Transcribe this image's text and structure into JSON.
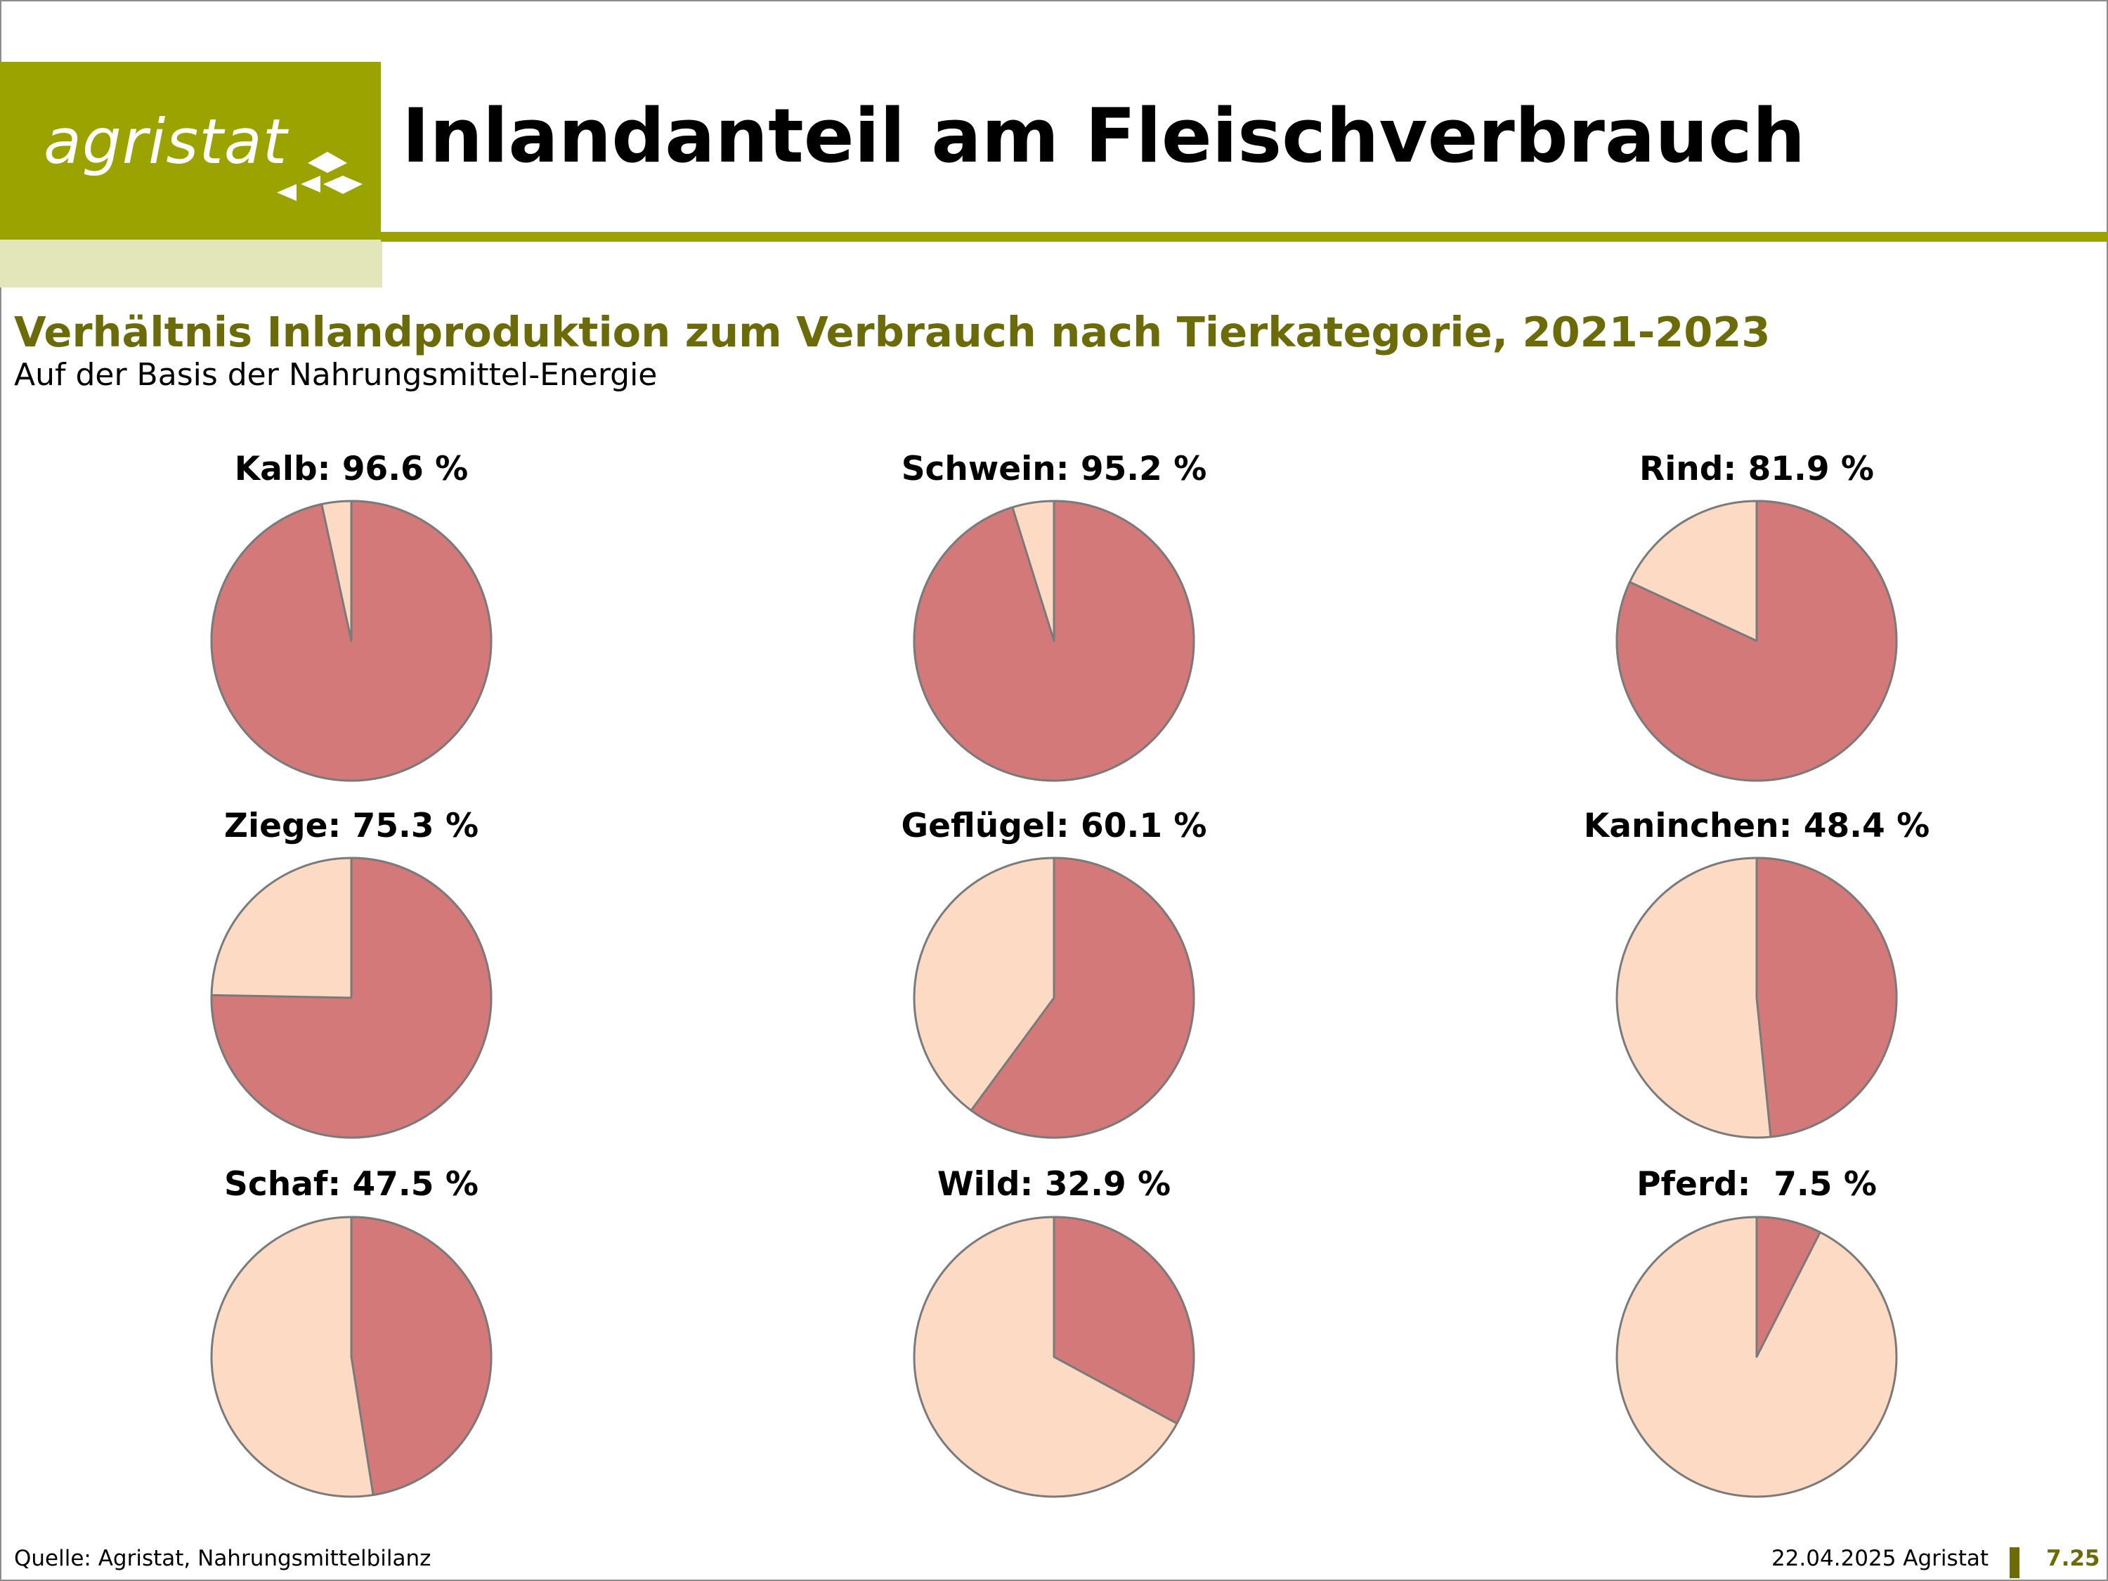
{
  "header": {
    "logo_text": "agristat",
    "title": "Inlandanteil am Fleischverbrauch"
  },
  "subtitle": "Verhältnis Inlandproduktion zum Verbrauch nach Tierkategorie, 2021-2023",
  "subtitle2": "Auf der Basis der Nahrungsmittel-Energie",
  "colors": {
    "brand": "#9aa300",
    "brand_light": "#e3e6b8",
    "subtitle": "#6b6b0a",
    "inland": "#d47979",
    "rest": "#fddac4",
    "outline": "#7a7a7a"
  },
  "chart_data": {
    "type": "pie",
    "charts": [
      {
        "label": "Kalb: 96.6 %",
        "category": "Kalb",
        "value": 96.6
      },
      {
        "label": "Schwein: 95.2 %",
        "category": "Schwein",
        "value": 95.2
      },
      {
        "label": "Rind: 81.9 %",
        "category": "Rind",
        "value": 81.9
      },
      {
        "label": "Ziege: 75.3 %",
        "category": "Ziege",
        "value": 75.3
      },
      {
        "label": "Geflügel: 60.1 %",
        "category": "Geflügel",
        "value": 60.1
      },
      {
        "label": "Kaninchen: 48.4 %",
        "category": "Kaninchen",
        "value": 48.4
      },
      {
        "label": "Schaf: 47.5 %",
        "category": "Schaf",
        "value": 47.5
      },
      {
        "label": "Wild: 32.9 %",
        "category": "Wild",
        "value": 32.9
      },
      {
        "label": "Pferd:  7.5 %",
        "category": "Pferd",
        "value": 7.5
      }
    ]
  },
  "footer": {
    "source": "Quelle: Agristat, Nahrungsmittelbilanz",
    "date": "22.04.2025 Agristat",
    "page": "7.25"
  }
}
